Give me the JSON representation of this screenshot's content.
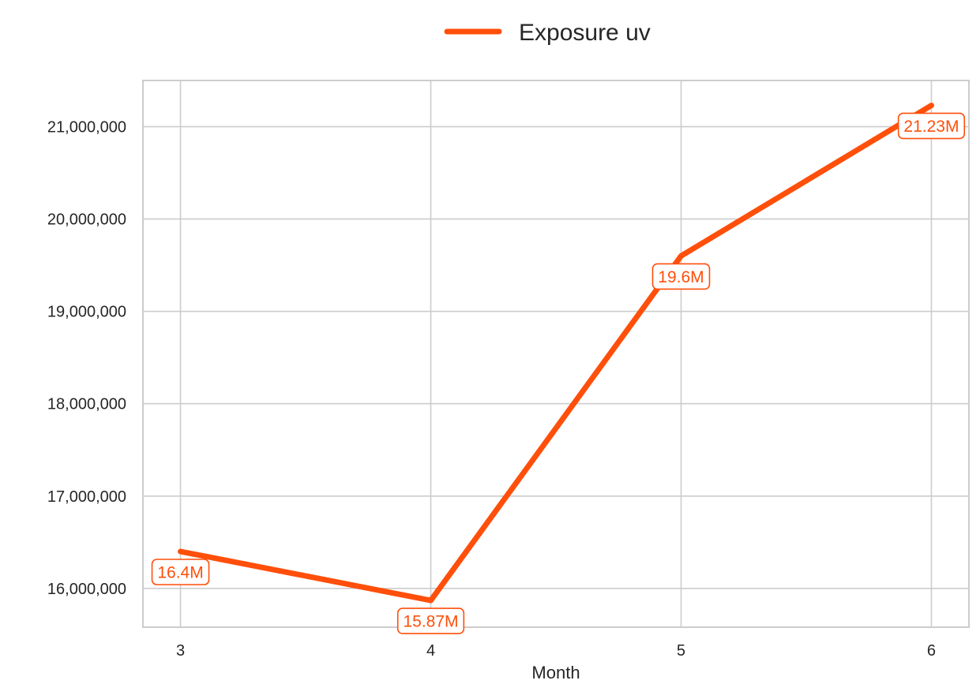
{
  "chart_data": {
    "type": "line",
    "title": "",
    "xlabel": "Month",
    "ylabel": "",
    "x": [
      3,
      4,
      5,
      6
    ],
    "series": [
      {
        "name": "Exposure uv",
        "values": [
          16400000,
          15870000,
          19600000,
          21230000
        ],
        "labels": [
          "16.4M",
          "15.87M",
          "19.6M",
          "21.23M"
        ],
        "color": "#ff4f0a"
      }
    ],
    "x_ticks": [
      "3",
      "4",
      "5",
      "6"
    ],
    "y_ticks": [
      16000000,
      17000000,
      18000000,
      19000000,
      20000000,
      21000000
    ],
    "y_tick_labels": [
      "16,000,000",
      "17,000,000",
      "18,000,000",
      "19,000,000",
      "20,000,000",
      "21,000,000"
    ],
    "xlim": [
      2.85,
      6.15
    ],
    "ylim": [
      15580000,
      21500000
    ],
    "grid": true,
    "legend_position": "top-center",
    "colors": {
      "grid": "#cccccc",
      "frame": "#cccccc",
      "text": "#262626"
    }
  }
}
